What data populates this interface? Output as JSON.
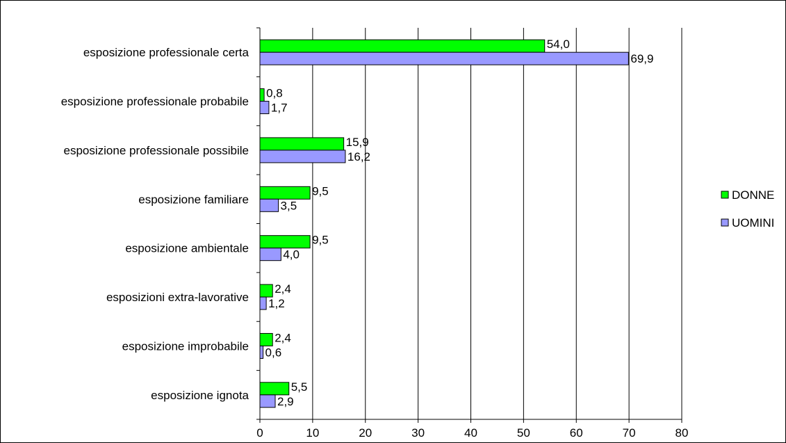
{
  "chart_data": {
    "type": "bar",
    "orientation": "horizontal",
    "categories": [
      "esposizione professionale certa",
      "esposizione professionale probabile",
      "esposizione professionale possibile",
      "esposizione familiare",
      "esposizione ambientale",
      "esposizioni extra-lavorative",
      "esposizione improbabile",
      "esposizione ignota"
    ],
    "series": [
      {
        "name": "DONNE",
        "color": "#00ff00",
        "values": [
          54.0,
          0.8,
          15.9,
          9.5,
          9.5,
          2.4,
          2.4,
          5.5
        ],
        "labels": [
          "54,0",
          "0,8",
          "15,9",
          "9,5",
          "9,5",
          "2,4",
          "2,4",
          "5,5"
        ]
      },
      {
        "name": "UOMINI",
        "color": "#9999ff",
        "values": [
          69.9,
          1.7,
          16.2,
          3.5,
          4.0,
          1.2,
          0.6,
          2.9
        ],
        "labels": [
          "69,9",
          "1,7",
          "16,2",
          "3,5",
          "4,0",
          "1,2",
          "0,6",
          "2,9"
        ]
      }
    ],
    "xlim": [
      0,
      80
    ],
    "xticks": [
      0,
      10,
      20,
      30,
      40,
      50,
      60,
      70,
      80
    ],
    "xtick_labels": [
      "0",
      "10",
      "20",
      "30",
      "40",
      "50",
      "60",
      "70",
      "80"
    ],
    "grid": "vertical",
    "legend_position": "right",
    "title": "",
    "xlabel": "",
    "ylabel": ""
  }
}
